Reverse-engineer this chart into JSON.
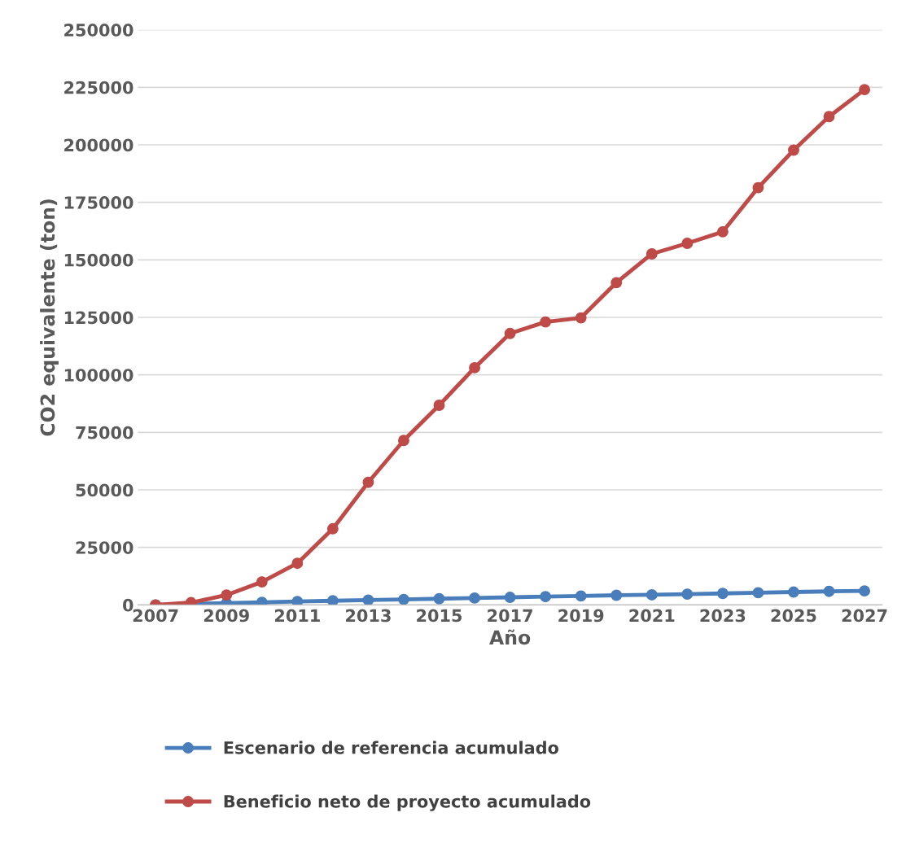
{
  "chart_data": {
    "type": "line",
    "xlabel": "Año",
    "ylabel": "CO2 equivalente (ton)",
    "x": [
      2007,
      2008,
      2009,
      2010,
      2011,
      2012,
      2013,
      2014,
      2015,
      2016,
      2017,
      2018,
      2019,
      2020,
      2021,
      2022,
      2023,
      2024,
      2025,
      2026,
      2027
    ],
    "series": [
      {
        "name": "Escenario de referencia acumulado",
        "color": "#4a7ebb",
        "values": [
          0,
          null,
          800,
          1100,
          1500,
          1800,
          2100,
          2400,
          2700,
          3000,
          3300,
          3600,
          3900,
          4200,
          4400,
          4700,
          5000,
          5300,
          5600,
          5900,
          6100
        ]
      },
      {
        "name": "Beneficio neto de proyecto acumulado",
        "color": "#be4b48",
        "values": [
          0,
          1000,
          4300,
          10000,
          18100,
          33100,
          53300,
          71500,
          86800,
          103100,
          118000,
          123000,
          124800,
          140100,
          152600,
          157200,
          162200,
          181400,
          197700,
          212300,
          224000
        ]
      }
    ],
    "xlim": [
      2006.5,
      2027.5
    ],
    "xticks": [
      2007,
      2009,
      2011,
      2013,
      2015,
      2017,
      2019,
      2021,
      2023,
      2025,
      2027
    ],
    "ylim": [
      0,
      250000
    ],
    "yticks": [
      0,
      25000,
      50000,
      75000,
      100000,
      125000,
      150000,
      175000,
      200000,
      225000,
      250000
    ],
    "grid": "y",
    "legend": "bottom",
    "marker": "circle",
    "line_style": "solid"
  }
}
